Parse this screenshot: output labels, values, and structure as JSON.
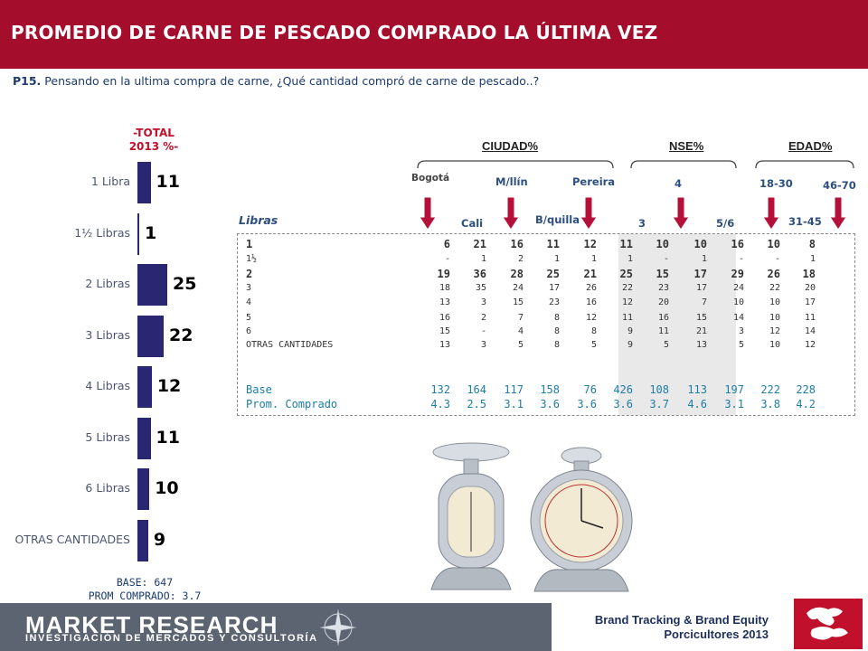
{
  "title": "PROMEDIO DE CARNE DE PESCADO COMPRADO LA ÚLTIMA VEZ",
  "question": {
    "code": "P15.",
    "text": "Pensando en la ultima compra de carne, ¿Qué cantidad compró de carne de pescado..?"
  },
  "total_header": [
    "-TOTAL",
    "2013 %-"
  ],
  "chart_data": {
    "type": "bar",
    "orientation": "horizontal",
    "categories": [
      "1 Libra",
      "1½ Libras",
      "2 Libras",
      "3 Libras",
      "4 Libras",
      "5 Libras",
      "6 Libras",
      "OTRAS CANTIDADES"
    ],
    "values": [
      11,
      1,
      25,
      22,
      12,
      11,
      10,
      9
    ],
    "xlim": [
      0,
      25
    ],
    "grid": false
  },
  "base_info": {
    "base": "BASE:  647",
    "prom": "PROM COMPRADO:  3.7"
  },
  "groups": [
    {
      "name": "CIUDAD%"
    },
    {
      "name": "NSE%"
    },
    {
      "name": "EDAD%"
    }
  ],
  "columns": [
    "Bogotá",
    "Cali",
    "M/llín",
    "B/quilla",
    "Pereira",
    "3",
    "4",
    "5/6",
    "18-30",
    "31-45",
    "46-70"
  ],
  "table_label": "Libras",
  "table": {
    "rows": [
      {
        "label": "1",
        "values": [
          "6",
          "21",
          "16",
          "11",
          "12",
          "11",
          "10",
          "10",
          "16",
          "10",
          "8"
        ],
        "style": "big"
      },
      {
        "label": "1½",
        "values": [
          "-",
          "1",
          "2",
          "1",
          "1",
          "1",
          "-",
          "1",
          "-",
          "-",
          "1"
        ],
        "style": "small"
      },
      {
        "label": "2",
        "values": [
          "19",
          "36",
          "28",
          "25",
          "21",
          "25",
          "15",
          "17",
          "29",
          "26",
          "18"
        ],
        "style": "big"
      },
      {
        "label": "3",
        "values": [
          "18",
          "35",
          "24",
          "17",
          "26",
          "22",
          "23",
          "17",
          "24",
          "22",
          "20"
        ],
        "style": "small"
      },
      {
        "label": "4",
        "values": [
          "13",
          "3",
          "15",
          "23",
          "16",
          "12",
          "20",
          "7",
          "10",
          "10",
          "17"
        ],
        "style": "small"
      },
      {
        "label": "5",
        "values": [
          "16",
          "2",
          "7",
          "8",
          "12",
          "11",
          "16",
          "15",
          "14",
          "10",
          "11"
        ],
        "style": "small"
      },
      {
        "label": "6",
        "values": [
          "15",
          "-",
          "4",
          "8",
          "8",
          "9",
          "11",
          "21",
          "3",
          "12",
          "14"
        ],
        "style": "small"
      },
      {
        "label": "OTRAS CANTIDADES",
        "values": [
          "13",
          "3",
          "5",
          "8",
          "5",
          "9",
          "5",
          "13",
          "5",
          "10",
          "12"
        ],
        "style": "small"
      }
    ],
    "base": {
      "label": "Base",
      "values": [
        "132",
        "164",
        "117",
        "158",
        "76",
        "426",
        "108",
        "113",
        "197",
        "222",
        "228"
      ]
    },
    "prom": {
      "label": "Prom. Comprado",
      "values": [
        "4.3",
        "2.5",
        "3.1",
        "3.6",
        "3.6",
        "3.6",
        "3.7",
        "4.6",
        "3.1",
        "3.8",
        "4.2"
      ]
    }
  },
  "footer": {
    "company": "MARKET RESEARCH",
    "company_sub": "INVESTIGACIÓN DE MERCADOS Y CONSULTORÍA",
    "study_line1": "Brand Tracking & Brand Equity",
    "study_line2": "Porcicultores 2013"
  },
  "colors": {
    "title_bg": "#a50d2c",
    "bar": "#2b2671",
    "arrow": "#b5103a",
    "footer_bg": "#5b6470"
  }
}
